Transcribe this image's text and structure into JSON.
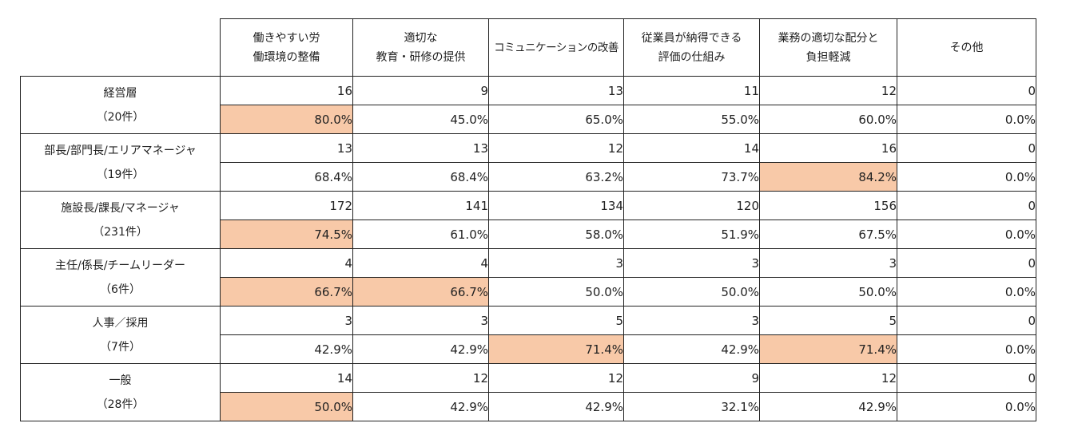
{
  "columns": [
    [
      "働きやすい労",
      "働環境の整備"
    ],
    [
      "適切な",
      "教育・研修の提供"
    ],
    [
      "コミュニケーションの改善"
    ],
    [
      "従業員が納得できる",
      "評価の仕組み"
    ],
    [
      "業務の適切な配分と",
      "負担軽減"
    ],
    [
      "その他"
    ]
  ],
  "rows": [
    {
      "label": "経営層",
      "count": "（20件）",
      "counts": [
        "16",
        "9",
        "13",
        "11",
        "12",
        "0"
      ],
      "percents": [
        "80.0%",
        "45.0%",
        "65.0%",
        "55.0%",
        "60.0%",
        "0.0%"
      ],
      "highlight": [
        0
      ]
    },
    {
      "label": "部長/部門長/エリアマネージャ",
      "count": "（19件）",
      "counts": [
        "13",
        "13",
        "12",
        "14",
        "16",
        "0"
      ],
      "percents": [
        "68.4%",
        "68.4%",
        "63.2%",
        "73.7%",
        "84.2%",
        "0.0%"
      ],
      "highlight": [
        4
      ]
    },
    {
      "label": "施設長/課長/マネージャ",
      "count": "（231件）",
      "counts": [
        "172",
        "141",
        "134",
        "120",
        "156",
        "0"
      ],
      "percents": [
        "74.5%",
        "61.0%",
        "58.0%",
        "51.9%",
        "67.5%",
        "0.0%"
      ],
      "highlight": [
        0
      ]
    },
    {
      "label": "主任/係長/チームリーダー",
      "count": "（6件）",
      "counts": [
        "4",
        "4",
        "3",
        "3",
        "3",
        "0"
      ],
      "percents": [
        "66.7%",
        "66.7%",
        "50.0%",
        "50.0%",
        "50.0%",
        "0.0%"
      ],
      "highlight": [
        0,
        1
      ]
    },
    {
      "label": "人事／採用",
      "count": "（7件）",
      "counts": [
        "3",
        "3",
        "5",
        "3",
        "5",
        "0"
      ],
      "percents": [
        "42.9%",
        "42.9%",
        "71.4%",
        "42.9%",
        "71.4%",
        "0.0%"
      ],
      "highlight": [
        2,
        4
      ]
    },
    {
      "label": "一般",
      "count": "（28件）",
      "counts": [
        "14",
        "12",
        "12",
        "9",
        "12",
        "0"
      ],
      "percents": [
        "50.0%",
        "42.9%",
        "42.9%",
        "32.1%",
        "42.9%",
        "0.0%"
      ],
      "highlight": [
        0
      ]
    }
  ],
  "colors": {
    "highlight": "#f8c9a8",
    "border": "#222222"
  }
}
